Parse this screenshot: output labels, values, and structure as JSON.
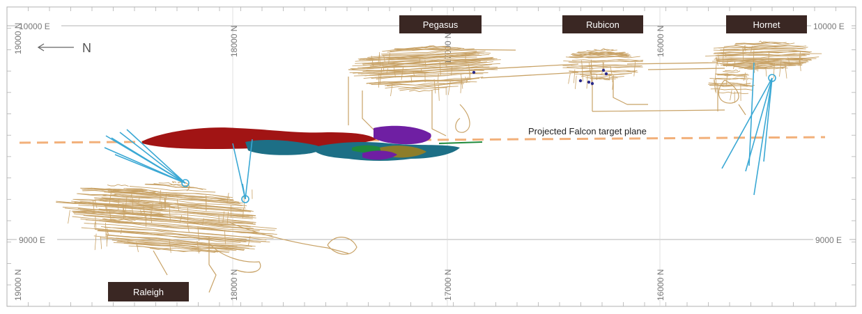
{
  "axes": {
    "top_left_easting": "10000 E",
    "top_right_easting": "10000 E",
    "mid_left_easting": "9000 E",
    "mid_right_easting": "9000 E",
    "north_labels": [
      "19000 N",
      "18000 N",
      "17000 N",
      "16000 N"
    ],
    "north_arrow_label": "N"
  },
  "areas": {
    "pegasus": "Pegasus",
    "rubicon": "Rubicon",
    "hornet": "Hornet",
    "raleigh": "Raleigh"
  },
  "target_plane_label": "Projected Falcon target plane",
  "colors": {
    "underground_workings": "#c8a266",
    "drillholes": "#3aa8d4",
    "target_plane": "#f2b07a",
    "label_box": "#3a2723",
    "frame": "#9a9a9a",
    "falcon_red": "#a11414",
    "falcon_teal": "#1d6f86",
    "falcon_purple": "#6f1fa3",
    "falcon_green": "#1f8a3b",
    "falcon_olive": "#8d7d2a"
  },
  "icons": {
    "north_arrow": "arrow-left-icon"
  }
}
